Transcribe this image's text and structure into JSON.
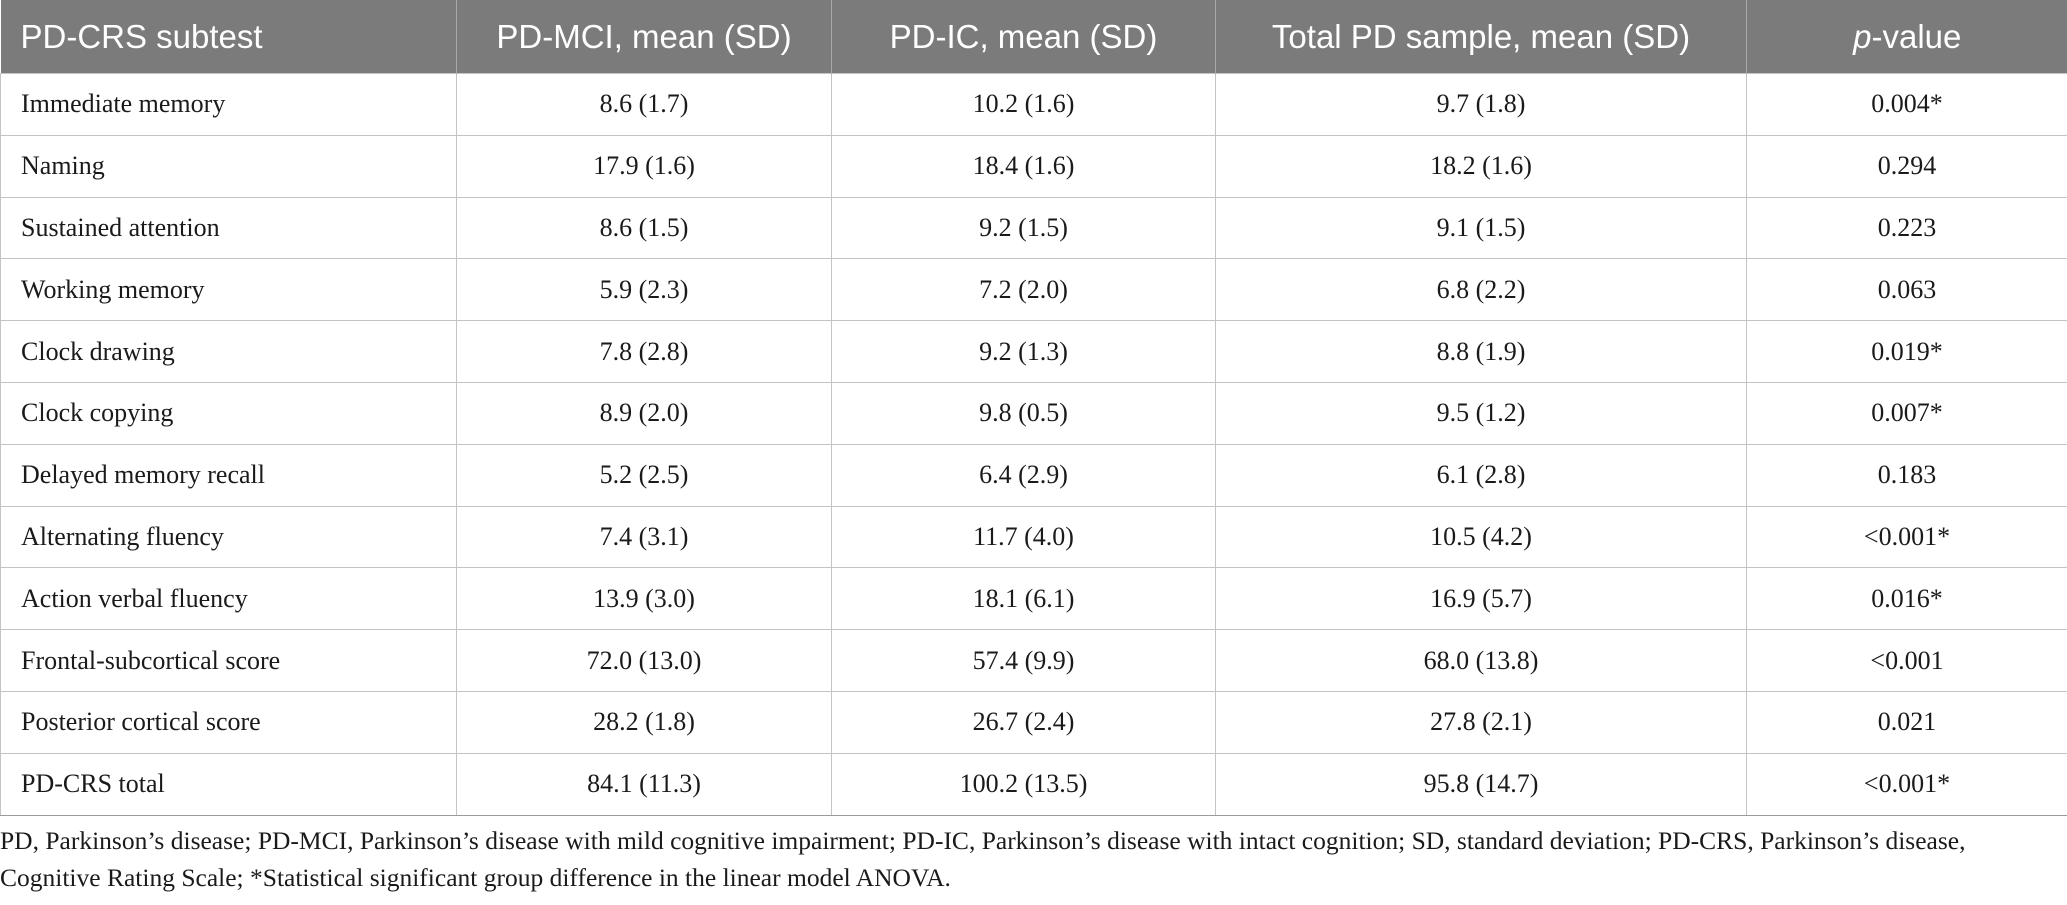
{
  "table": {
    "headers": [
      {
        "pre": "PD-CRS subtest",
        "ital": "",
        "post": ""
      },
      {
        "pre": "PD-MCI, mean (SD)",
        "ital": "",
        "post": ""
      },
      {
        "pre": "PD-IC, mean (SD)",
        "ital": "",
        "post": ""
      },
      {
        "pre": "Total PD sample, mean (SD)",
        "ital": "",
        "post": ""
      },
      {
        "pre": "",
        "ital": "p",
        "post": "-value"
      }
    ],
    "rows": [
      [
        "Immediate memory",
        "8.6 (1.7)",
        "10.2 (1.6)",
        "9.7 (1.8)",
        "0.004*"
      ],
      [
        "Naming",
        "17.9 (1.6)",
        "18.4 (1.6)",
        "18.2 (1.6)",
        "0.294"
      ],
      [
        "Sustained attention",
        "8.6 (1.5)",
        "9.2 (1.5)",
        "9.1 (1.5)",
        "0.223"
      ],
      [
        "Working memory",
        "5.9 (2.3)",
        "7.2 (2.0)",
        "6.8 (2.2)",
        "0.063"
      ],
      [
        "Clock drawing",
        "7.8 (2.8)",
        "9.2 (1.3)",
        "8.8 (1.9)",
        "0.019*"
      ],
      [
        "Clock copying",
        "8.9 (2.0)",
        "9.8 (0.5)",
        "9.5 (1.2)",
        "0.007*"
      ],
      [
        "Delayed memory recall",
        "5.2 (2.5)",
        "6.4 (2.9)",
        "6.1 (2.8)",
        "0.183"
      ],
      [
        "Alternating fluency",
        "7.4 (3.1)",
        "11.7 (4.0)",
        "10.5 (4.2)",
        "<0.001*"
      ],
      [
        "Action verbal fluency",
        "13.9 (3.0)",
        "18.1 (6.1)",
        "16.9 (5.7)",
        "0.016*"
      ],
      [
        "Frontal-subcortical score",
        "72.0 (13.0)",
        "57.4 (9.9)",
        "68.0 (13.8)",
        "<0.001"
      ],
      [
        "Posterior cortical score",
        "28.2 (1.8)",
        "26.7 (2.4)",
        "27.8 (2.1)",
        "0.021"
      ],
      [
        "PD-CRS total",
        "84.1 (11.3)",
        "100.2 (13.5)",
        "95.8 (14.7)",
        "<0.001*"
      ]
    ]
  },
  "footnote": "PD, Parkinson’s disease; PD-MCI, Parkinson’s disease with mild cognitive impairment; PD-IC, Parkinson’s disease with intact cognition; SD, standard deviation; PD-CRS, Parkinson’s disease, Cognitive Rating Scale; *Statistical significant group difference in the linear model ANOVA.",
  "colors": {
    "header_bg": "#7b7b7b",
    "header_text": "#ffffff",
    "grid": "#c4c4c4",
    "text": "#1a1a1a"
  }
}
